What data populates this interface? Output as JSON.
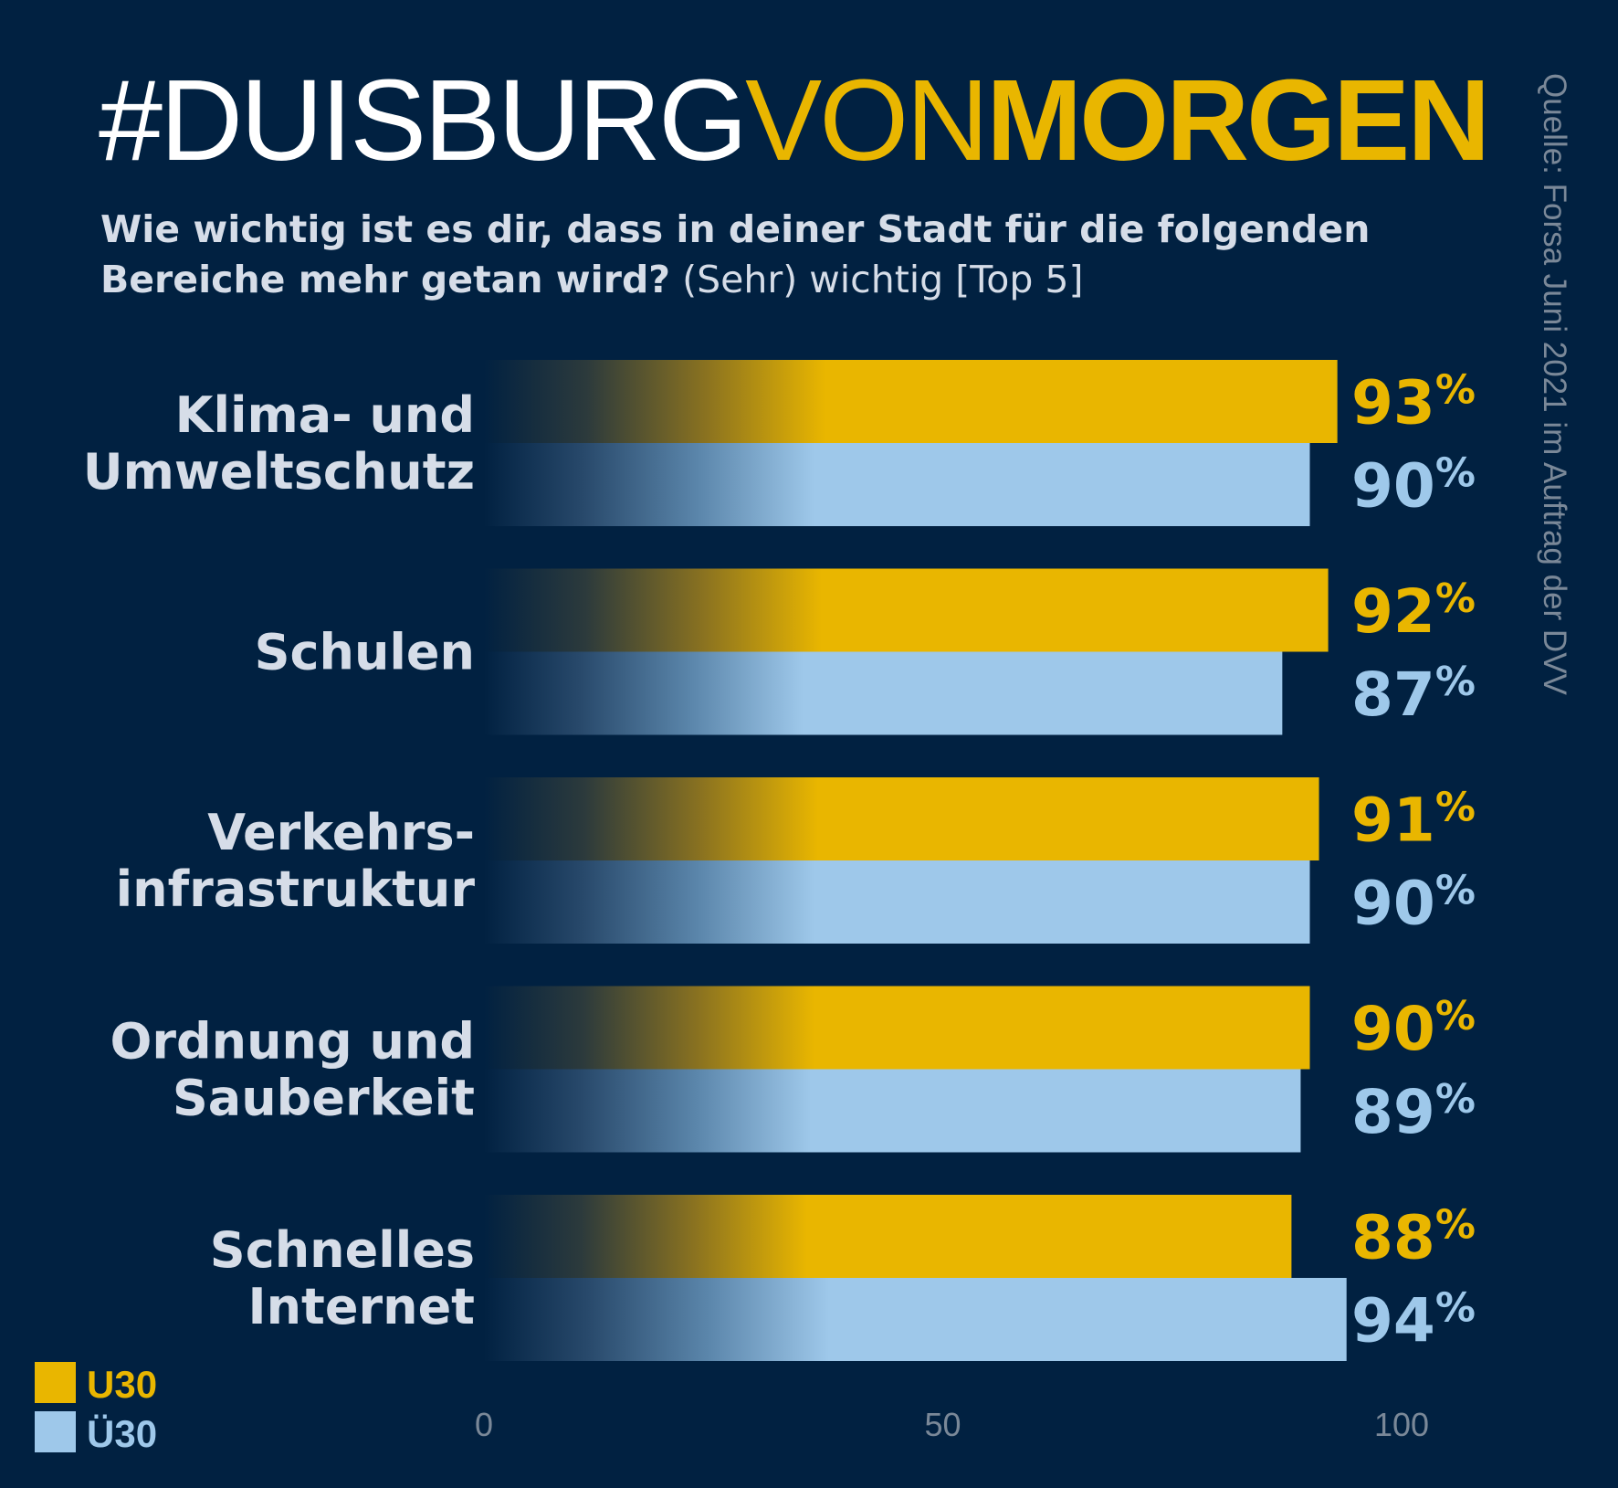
{
  "header": {
    "title_part1": "#DUISBURG",
    "title_part2": "VON",
    "title_part3": "MORGEN",
    "subtitle_bold": "Wie wichtig ist es dir, dass in deiner Stadt für die folgenden Bereiche mehr getan wird?",
    "subtitle_regular": " (Sehr) wichtig [Top 5]",
    "source": "Quelle: Forsa Juni 2021 im Auftrag der DVV"
  },
  "colors": {
    "background": "#012141",
    "u30": "#e9b600",
    "ue30": "#9ec8ea",
    "label": "#d6dde8",
    "axis": "#7a8898"
  },
  "chart_data": {
    "type": "bar",
    "orientation": "horizontal",
    "categories": [
      [
        "Klima- und",
        "Umweltschutz"
      ],
      [
        "Schulen"
      ],
      [
        "Verkehrs-",
        "infrastruktur"
      ],
      [
        "Ordnung und",
        "Sauberkeit"
      ],
      [
        "Schnelles",
        "Internet"
      ]
    ],
    "series": [
      {
        "name": "U30",
        "values": [
          93,
          92,
          91,
          90,
          88
        ]
      },
      {
        "name": "Ü30",
        "values": [
          90,
          87,
          90,
          89,
          94
        ]
      }
    ],
    "value_suffix": "%",
    "xlim": [
      0,
      100
    ],
    "xticks": [
      0,
      50,
      100
    ],
    "grid": false,
    "legend_position": "bottom-left"
  }
}
